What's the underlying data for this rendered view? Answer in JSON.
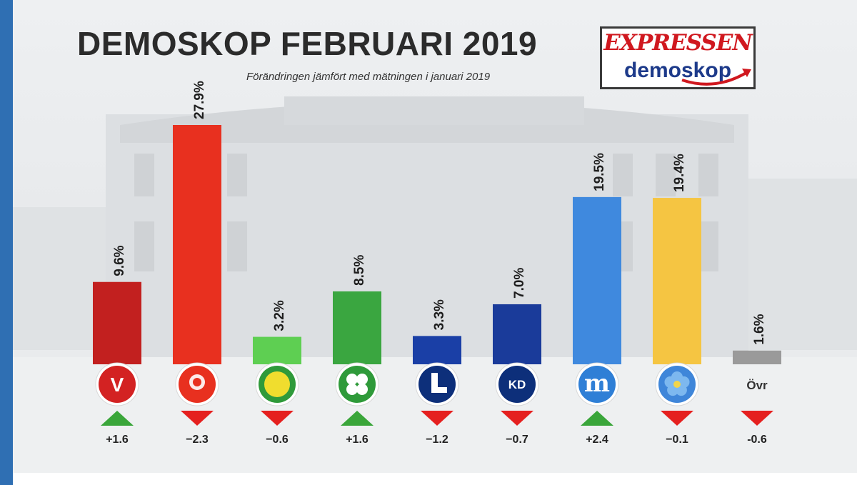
{
  "header": {
    "title": "DEMOSKOP FEBRUARI 2019",
    "subtitle": "Förändringen jämfört med mätningen i januari 2019"
  },
  "logo": {
    "top_text": "EXPRESSEN",
    "bottom_text": "demoskop"
  },
  "colors": {
    "up": "#3aa63a",
    "down": "#e5201f",
    "title": "#2b2b2b",
    "logo_red": "#d0181f",
    "logo_blue": "#1d3a8a"
  },
  "chart_data": {
    "type": "bar",
    "title": "DEMOSKOP FEBRUARI 2019",
    "subtitle": "Förändringen jämfört med mätningen i januari 2019",
    "categories": [
      "V",
      "S",
      "MP",
      "C",
      "L",
      "KD",
      "M",
      "SD",
      "Övr"
    ],
    "values": [
      9.6,
      27.9,
      3.2,
      8.5,
      3.3,
      7.0,
      19.5,
      19.4,
      1.6
    ],
    "value_labels": [
      "9.6%",
      "27.9%",
      "3.2%",
      "8.5%",
      "3.3%",
      "7.0%",
      "19.5%",
      "19.4%",
      "1.6%"
    ],
    "changes": [
      1.6,
      -2.3,
      -0.6,
      1.6,
      -1.2,
      -0.7,
      2.4,
      -0.1,
      -0.6
    ],
    "change_labels": [
      "+1.6",
      "−2.3",
      "−0.6",
      "+1.6",
      "−1.2",
      "−0.7",
      "+2.4",
      "−0.1",
      "-0.6"
    ],
    "bar_colors": [
      "#c2201f",
      "#e8301f",
      "#5ecf52",
      "#3aa640",
      "#1a3fa6",
      "#1a3b9a",
      "#3f89de",
      "#f5c542",
      "#9a9a9a"
    ],
    "badge_colors": [
      "#d32222",
      "#e8301f",
      "#2f9a3a",
      "#2f9a3a",
      "#0d2f7a",
      "#0d2f7a",
      "#2f7fd6",
      "#3f86d9",
      ""
    ],
    "badge_glyphs": [
      "V",
      "",
      "",
      "",
      "",
      "KD",
      "m",
      "",
      ""
    ],
    "other_label": "Övr",
    "ylim": [
      0,
      30
    ],
    "xlabel": "",
    "ylabel": "",
    "grid": false
  }
}
